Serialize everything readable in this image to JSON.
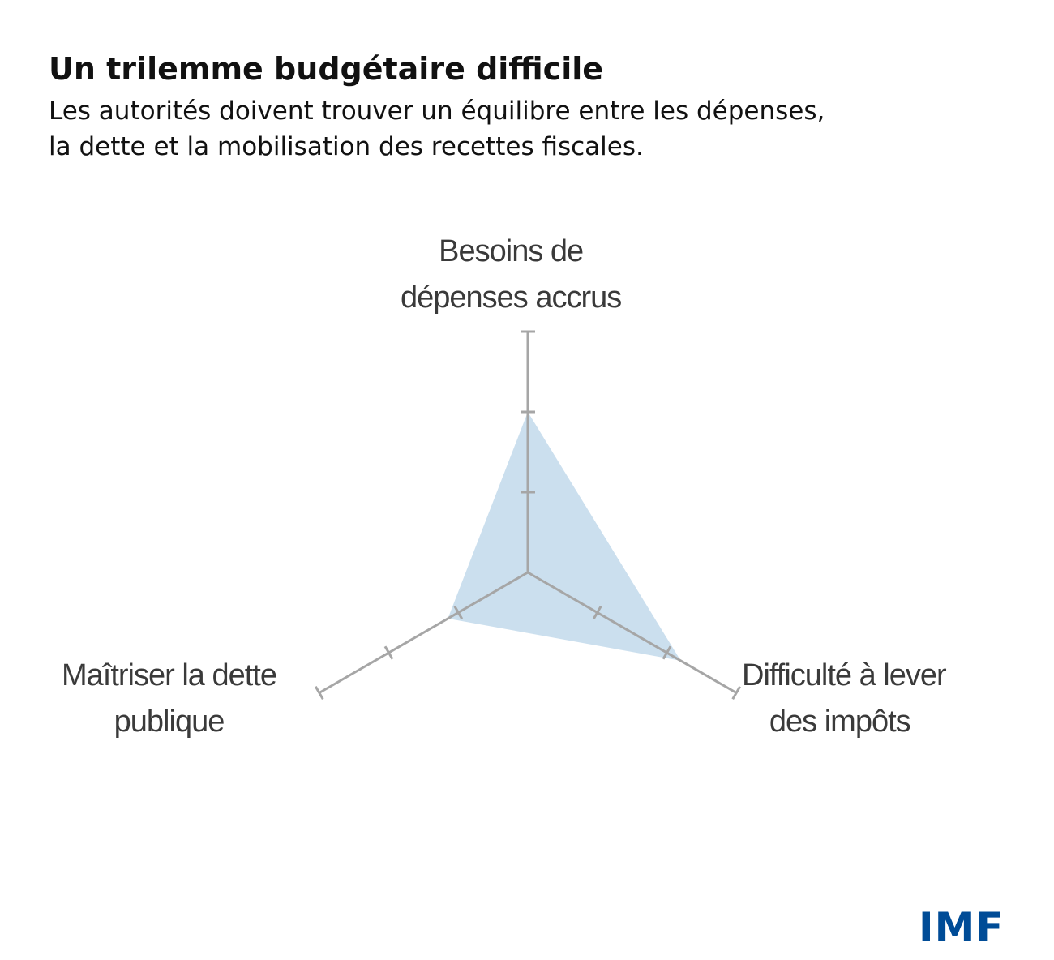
{
  "header": {
    "title": "Un trilemme budgétaire difficile",
    "subtitle_line1": "Les autorités doivent trouver un équilibre entre les dépenses,",
    "subtitle_line2": "la dette et la mobilisation des recettes fiscales."
  },
  "logo": {
    "text": "IMF",
    "color": "#004c97"
  },
  "chart_data": {
    "type": "radar",
    "axes": [
      {
        "key": "top",
        "label_line1": "Besoins de",
        "label_line2": "dépenses accrus",
        "value": 2
      },
      {
        "key": "right",
        "label_line1": "Difficulté à lever",
        "label_line2": "des impôts",
        "value": 2.2
      },
      {
        "key": "left",
        "label_line1": "Maîtriser la dette",
        "label_line2": "publique",
        "value": 1.15
      }
    ],
    "range": [
      0,
      3
    ],
    "ticks": [
      1,
      2,
      3
    ],
    "fill_color": "#c5dcec",
    "axis_color": "#a6a6a6"
  }
}
